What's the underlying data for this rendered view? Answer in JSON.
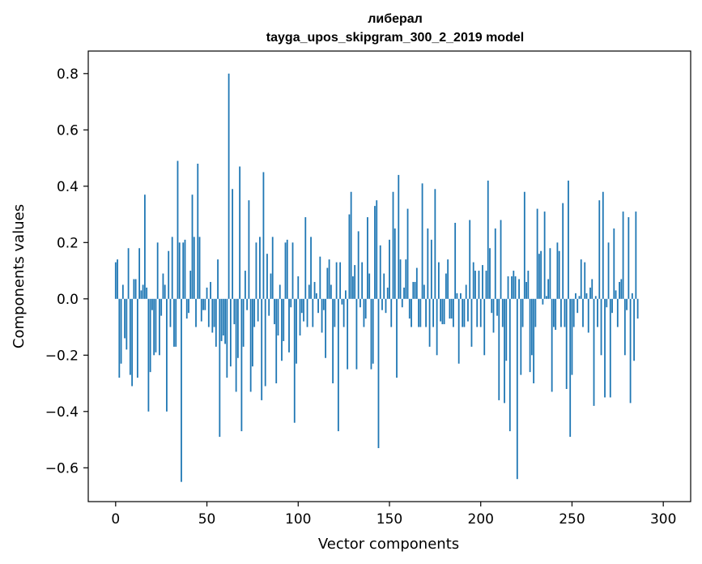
{
  "chart_data": {
    "type": "bar",
    "title": "либерал",
    "subtitle": "tayga_upos_skipgram_300_2_2019 model",
    "xlabel": "Vector components",
    "ylabel": "Components values",
    "xlim": [
      -15,
      315
    ],
    "ylim": [
      -0.72,
      0.88
    ],
    "xticks": [
      0,
      50,
      100,
      150,
      200,
      250,
      300
    ],
    "yticks": [
      -0.6,
      -0.4,
      -0.2,
      0.0,
      0.2,
      0.4,
      0.6,
      0.8
    ],
    "ytick_labels": [
      "−0.6",
      "−0.4",
      "−0.2",
      "0.0",
      "0.2",
      "0.4",
      "0.6",
      "0.8"
    ],
    "xtick_labels": [
      "0",
      "50",
      "100",
      "150",
      "200",
      "250",
      "300"
    ],
    "bar_color": "#1f77b4",
    "grid": false,
    "values": [
      0.13,
      0.14,
      -0.28,
      -0.23,
      0.05,
      -0.14,
      -0.18,
      0.18,
      -0.27,
      -0.31,
      0.07,
      0.07,
      -0.28,
      0.18,
      0.03,
      0.05,
      0.37,
      0.04,
      -0.4,
      -0.26,
      -0.04,
      -0.2,
      -0.19,
      0.2,
      -0.2,
      -0.06,
      0.09,
      0.05,
      -0.4,
      0.17,
      -0.1,
      0.22,
      -0.17,
      -0.17,
      0.49,
      0.2,
      -0.65,
      0.2,
      0.21,
      -0.07,
      -0.05,
      0.1,
      0.37,
      0.22,
      -0.1,
      0.48,
      0.22,
      -0.08,
      -0.04,
      -0.04,
      0.04,
      -0.1,
      0.06,
      -0.12,
      -0.1,
      -0.17,
      0.14,
      -0.49,
      -0.15,
      -0.13,
      -0.16,
      -0.28,
      0.8,
      -0.24,
      0.39,
      -0.09,
      -0.33,
      -0.21,
      0.47,
      -0.47,
      -0.17,
      0.1,
      -0.04,
      0.35,
      -0.33,
      -0.24,
      -0.1,
      0.2,
      -0.08,
      0.22,
      -0.36,
      0.45,
      -0.31,
      0.16,
      -0.06,
      0.09,
      0.22,
      -0.09,
      -0.3,
      -0.13,
      0.05,
      -0.22,
      -0.15,
      0.2,
      0.21,
      -0.19,
      -0.03,
      0.2,
      -0.44,
      -0.23,
      0.08,
      -0.13,
      -0.05,
      -0.08,
      0.29,
      -0.1,
      0.05,
      0.22,
      -0.1,
      0.06,
      0.02,
      -0.05,
      0.15,
      -0.12,
      -0.04,
      -0.21,
      0.11,
      0.14,
      0.05,
      -0.3,
      -0.1,
      0.13,
      -0.47,
      0.13,
      -0.02,
      -0.1,
      0.03,
      -0.25,
      0.3,
      0.38,
      0.08,
      0.12,
      -0.25,
      0.24,
      -0.03,
      0.13,
      -0.1,
      -0.07,
      0.29,
      0.09,
      -0.25,
      -0.23,
      0.33,
      0.35,
      -0.53,
      0.19,
      -0.04,
      0.09,
      -0.05,
      0.04,
      0.21,
      -0.1,
      0.38,
      0.25,
      -0.28,
      0.44,
      0.14,
      -0.03,
      0.04,
      0.14,
      0.32,
      -0.07,
      -0.1,
      0.06,
      0.06,
      0.11,
      -0.1,
      -0.1,
      0.41,
      0.05,
      -0.1,
      0.25,
      -0.17,
      0.21,
      -0.1,
      0.39,
      -0.2,
      0.13,
      -0.08,
      -0.09,
      -0.09,
      0.09,
      0.14,
      -0.07,
      -0.07,
      -0.1,
      0.27,
      0.02,
      -0.23,
      0.02,
      -0.1,
      -0.1,
      0.05,
      -0.08,
      0.28,
      -0.17,
      0.13,
      0.1,
      -0.1,
      0.1,
      -0.1,
      0.12,
      -0.2,
      0.1,
      0.42,
      0.18,
      -0.05,
      -0.12,
      0.25,
      -0.06,
      -0.36,
      0.28,
      -0.1,
      -0.37,
      -0.22,
      0.08,
      -0.47,
      0.08,
      0.1,
      0.08,
      -0.64,
      0.07,
      -0.27,
      -0.1,
      0.38,
      0.06,
      0.1,
      -0.26,
      -0.2,
      -0.3,
      -0.1,
      0.32,
      0.16,
      0.17,
      -0.02,
      0.31,
      0.01,
      0.07,
      0.18,
      -0.33,
      -0.1,
      -0.11,
      0.2,
      0.17,
      -0.1,
      0.34,
      -0.1,
      -0.32,
      0.42,
      -0.49,
      -0.27,
      -0.1,
      0.02,
      -0.05,
      0.01,
      0.14,
      -0.1,
      0.13,
      0.02,
      -0.12,
      0.04,
      0.07,
      -0.38,
      0.01,
      -0.1,
      0.35,
      -0.2,
      0.38,
      -0.35,
      -0.03,
      0.2,
      -0.35,
      -0.05,
      0.25,
      0.03,
      -0.1,
      0.06,
      0.07,
      0.31,
      -0.2,
      -0.04,
      0.29,
      -0.37,
      0.02,
      -0.22,
      0.31,
      -0.07
    ]
  }
}
